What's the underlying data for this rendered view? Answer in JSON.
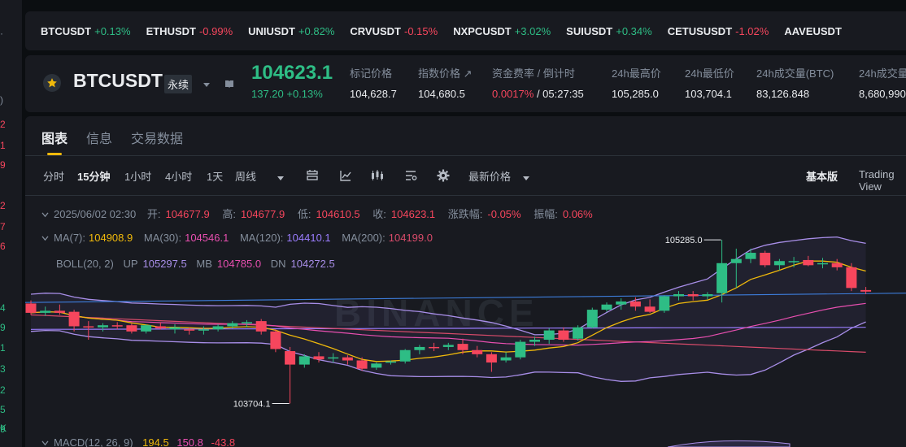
{
  "left_panel": {
    "rows": [
      {
        "text": "·",
        "color": "#848e9c"
      },
      {
        "text": ")",
        "color": "#848e9c"
      },
      {
        "text": "2",
        "color": "#f6465d"
      },
      {
        "text": "1",
        "color": "#f6465d"
      },
      {
        "text": "9",
        "color": "#f6465d"
      },
      {
        "text": "2",
        "color": "#f6465d"
      },
      {
        "text": "7",
        "color": "#f6465d"
      },
      {
        "text": "6",
        "color": "#f6465d"
      },
      {
        "text": "4",
        "color": "#2ebd85"
      },
      {
        "text": "9",
        "color": "#2ebd85"
      },
      {
        "text": "1",
        "color": "#2ebd85"
      },
      {
        "text": "3",
        "color": "#2ebd85"
      },
      {
        "text": "2",
        "color": "#2ebd85"
      },
      {
        "text": "5",
        "color": "#2ebd85"
      },
      {
        "text": "9",
        "color": "#2ebd85"
      },
      {
        "text": "K",
        "color": "#2ebd85"
      }
    ]
  },
  "ticker": [
    {
      "symbol": "BTCUSDT",
      "change": "+0.13%",
      "dir": "up"
    },
    {
      "symbol": "ETHUSDT",
      "change": "-0.99%",
      "dir": "down"
    },
    {
      "symbol": "UNIUSDT",
      "change": "+0.82%",
      "dir": "up"
    },
    {
      "symbol": "CRVUSDT",
      "change": "-0.15%",
      "dir": "down"
    },
    {
      "symbol": "NXPCUSDT",
      "change": "+3.02%",
      "dir": "up"
    },
    {
      "symbol": "SUIUSDT",
      "change": "+0.34%",
      "dir": "up"
    },
    {
      "symbol": "CETUSUSDT",
      "change": "-1.02%",
      "dir": "down"
    },
    {
      "symbol": "AAVEUSDT",
      "change": "",
      "dir": "up"
    }
  ],
  "header": {
    "symbol": "BTCUSDT",
    "contract_type": "永续",
    "last_price": "104623.1",
    "change_text": "137.20 +0.13%",
    "stats": [
      {
        "label": "标记价格",
        "value": "104,628.7",
        "value_color": "#eaecef"
      },
      {
        "label": "指数价格 ↗",
        "value": "104,680.5",
        "value_color": "#eaecef"
      },
      {
        "label": "资金费率 / 倒计时",
        "value": "0.0017%",
        "value2": " / 05:27:35",
        "value_color": "#f6465d"
      },
      {
        "label": "24h最高价",
        "value": "105,285.0",
        "value_color": "#eaecef"
      },
      {
        "label": "24h最低价",
        "value": "103,704.1",
        "value_color": "#eaecef"
      },
      {
        "label": "24h成交量(BTC)",
        "value": "83,126.848",
        "value_color": "#eaecef"
      },
      {
        "label": "24h成交量",
        "value": "8,680,990",
        "value_color": "#eaecef"
      }
    ]
  },
  "tabs": [
    "图表",
    "信息",
    "交易数据"
  ],
  "toolbar": {
    "timeframes": [
      "分时",
      "15分钟",
      "1小时",
      "4小时",
      "1天",
      "周线"
    ],
    "active_timeframe": "15分钟",
    "price_type": "最新价格",
    "view_basic": "基本版",
    "view_tv": "Trading View"
  },
  "ohlc": {
    "date": "2025/06/02 02:30",
    "open_label": "开:",
    "open": "104677.9",
    "high_label": "高:",
    "high": "104677.9",
    "low_label": "低:",
    "low": "104610.5",
    "close_label": "收:",
    "close": "104623.1",
    "change_label": "涨跌幅:",
    "change": "-0.05%",
    "amp_label": "振幅:",
    "amp": "0.06%"
  },
  "ma": {
    "ma7_label": "MA(7):",
    "ma7": "104908.9",
    "ma30_label": "MA(30):",
    "ma30": "104546.1",
    "ma120_label": "MA(120):",
    "ma120": "104410.1",
    "ma200_label": "MA(200):",
    "ma200": "104199.0"
  },
  "boll": {
    "label": "BOLL(20, 2)",
    "up_label": "UP",
    "up": "105297.5",
    "mb_label": "MB",
    "mb": "104785.0",
    "dn_label": "DN",
    "dn": "104272.5"
  },
  "macd": {
    "label": "MACD(12, 26, 9)",
    "v1": "194.5",
    "v2": "150.8",
    "v3": "-43.8"
  },
  "colors": {
    "up": "#2ebd85",
    "down": "#f6465d",
    "ma7": "#f0b90b",
    "ma30": "#e84fb0",
    "ma120": "#9b7dff",
    "ma200": "#d84b6a",
    "boll": "#a88ee8",
    "accent": "#f0b90b"
  },
  "chart_data": {
    "type": "candlestick",
    "interval": "15分钟",
    "ylim": [
      103480,
      105600
    ],
    "candles": [
      {
        "o": 104670,
        "h": 104700,
        "l": 104560,
        "c": 104580
      },
      {
        "o": 104580,
        "h": 104640,
        "l": 104550,
        "c": 104600
      },
      {
        "o": 104600,
        "h": 104660,
        "l": 104560,
        "c": 104580
      },
      {
        "o": 104590,
        "h": 104610,
        "l": 104400,
        "c": 104450
      },
      {
        "o": 104450,
        "h": 104500,
        "l": 104320,
        "c": 104440
      },
      {
        "o": 104440,
        "h": 104480,
        "l": 104400,
        "c": 104460
      },
      {
        "o": 104460,
        "h": 104490,
        "l": 104420,
        "c": 104450
      },
      {
        "o": 104460,
        "h": 104480,
        "l": 104380,
        "c": 104400
      },
      {
        "o": 104400,
        "h": 104470,
        "l": 104380,
        "c": 104460
      },
      {
        "o": 104450,
        "h": 104490,
        "l": 104420,
        "c": 104430
      },
      {
        "o": 104420,
        "h": 104470,
        "l": 104380,
        "c": 104440
      },
      {
        "o": 104420,
        "h": 104440,
        "l": 104370,
        "c": 104410
      },
      {
        "o": 104410,
        "h": 104450,
        "l": 104370,
        "c": 104420
      },
      {
        "o": 104420,
        "h": 104470,
        "l": 104400,
        "c": 104450
      },
      {
        "o": 104450,
        "h": 104500,
        "l": 104430,
        "c": 104480
      },
      {
        "o": 104480,
        "h": 104510,
        "l": 104440,
        "c": 104490
      },
      {
        "o": 104500,
        "h": 104520,
        "l": 104370,
        "c": 104400
      },
      {
        "o": 104400,
        "h": 104420,
        "l": 104200,
        "c": 104230
      },
      {
        "o": 104210,
        "h": 104250,
        "l": 103704.1,
        "c": 104080
      },
      {
        "o": 104080,
        "h": 104180,
        "l": 104050,
        "c": 104160
      },
      {
        "o": 104160,
        "h": 104200,
        "l": 104100,
        "c": 104130
      },
      {
        "o": 104140,
        "h": 104190,
        "l": 104100,
        "c": 104150
      },
      {
        "o": 104150,
        "h": 104170,
        "l": 104080,
        "c": 104120
      },
      {
        "o": 104120,
        "h": 104150,
        "l": 104020,
        "c": 104040
      },
      {
        "o": 104050,
        "h": 104100,
        "l": 104030,
        "c": 104090
      },
      {
        "o": 104100,
        "h": 104120,
        "l": 104080,
        "c": 104110
      },
      {
        "o": 104110,
        "h": 104230,
        "l": 104090,
        "c": 104220
      },
      {
        "o": 104220,
        "h": 104270,
        "l": 104180,
        "c": 104250
      },
      {
        "o": 104250,
        "h": 104290,
        "l": 104210,
        "c": 104240
      },
      {
        "o": 104250,
        "h": 104290,
        "l": 104220,
        "c": 104270
      },
      {
        "o": 104280,
        "h": 104330,
        "l": 104180,
        "c": 104220
      },
      {
        "o": 104220,
        "h": 104260,
        "l": 104150,
        "c": 104180
      },
      {
        "o": 104180,
        "h": 104200,
        "l": 104010,
        "c": 104100
      },
      {
        "o": 104120,
        "h": 104200,
        "l": 104100,
        "c": 104150
      },
      {
        "o": 104150,
        "h": 104320,
        "l": 104130,
        "c": 104300
      },
      {
        "o": 104300,
        "h": 104350,
        "l": 104260,
        "c": 104320
      },
      {
        "o": 104320,
        "h": 104430,
        "l": 104280,
        "c": 104410
      },
      {
        "o": 104410,
        "h": 104440,
        "l": 104300,
        "c": 104320
      },
      {
        "o": 104330,
        "h": 104460,
        "l": 104310,
        "c": 104440
      },
      {
        "o": 104440,
        "h": 104630,
        "l": 104430,
        "c": 104610
      },
      {
        "o": 104610,
        "h": 104680,
        "l": 104590,
        "c": 104660
      },
      {
        "o": 104660,
        "h": 104720,
        "l": 104610,
        "c": 104690
      },
      {
        "o": 104690,
        "h": 104730,
        "l": 104600,
        "c": 104640
      },
      {
        "o": 104640,
        "h": 104710,
        "l": 104580,
        "c": 104590
      },
      {
        "o": 104600,
        "h": 104750,
        "l": 104580,
        "c": 104740
      },
      {
        "o": 104740,
        "h": 104790,
        "l": 104700,
        "c": 104760
      },
      {
        "o": 104760,
        "h": 104790,
        "l": 104700,
        "c": 104740
      },
      {
        "o": 104740,
        "h": 104780,
        "l": 104710,
        "c": 104760
      },
      {
        "o": 104770,
        "h": 105285.0,
        "l": 104680,
        "c": 105060
      },
      {
        "o": 105060,
        "h": 105200,
        "l": 104820,
        "c": 105100
      },
      {
        "o": 105100,
        "h": 105200,
        "l": 105060,
        "c": 105160
      },
      {
        "o": 105160,
        "h": 105180,
        "l": 105020,
        "c": 105040
      },
      {
        "o": 105040,
        "h": 105100,
        "l": 104990,
        "c": 105080
      },
      {
        "o": 105070,
        "h": 105120,
        "l": 105020,
        "c": 105080
      },
      {
        "o": 105090,
        "h": 105130,
        "l": 105030,
        "c": 105040
      },
      {
        "o": 105050,
        "h": 105110,
        "l": 105010,
        "c": 105060
      },
      {
        "o": 105060,
        "h": 105100,
        "l": 104990,
        "c": 105020
      },
      {
        "o": 105020,
        "h": 105060,
        "l": 104790,
        "c": 104820
      },
      {
        "o": 104800,
        "h": 104830,
        "l": 104760,
        "c": 104785
      }
    ],
    "price_line": {
      "from": 104680,
      "to": 104770
    },
    "annotations": [
      {
        "text": "105285.0",
        "candle_index": 48,
        "kind": "high"
      },
      {
        "text": "103704.1",
        "candle_index": 18,
        "kind": "low"
      }
    ],
    "watermark": "BINANCE"
  }
}
